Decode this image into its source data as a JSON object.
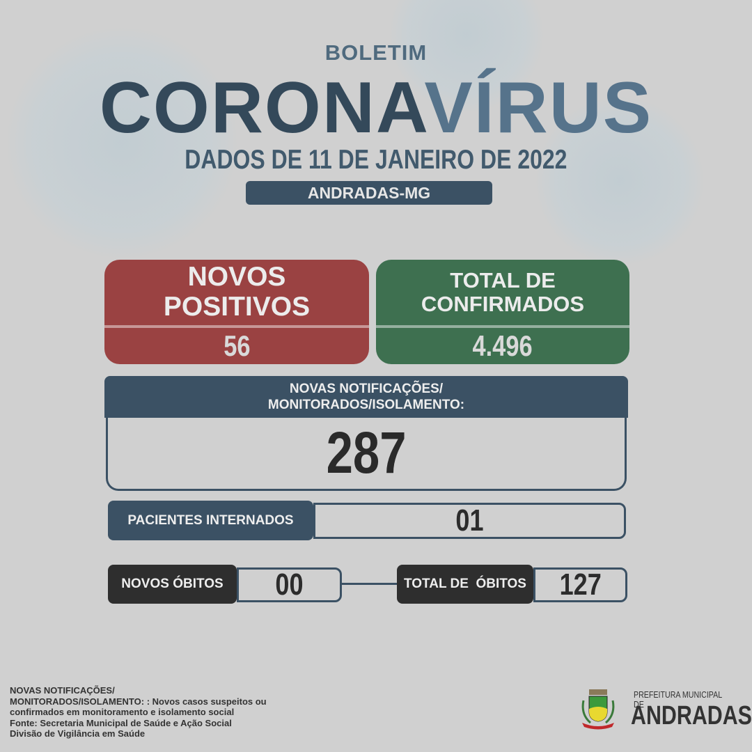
{
  "header": {
    "kicker": "BOLETIM",
    "title_part1": "CORONA",
    "title_part2": "VÍRUS",
    "date": "DADOS DE 11 DE JANEIRO DE 2022",
    "city": "ANDRADAS-MG"
  },
  "cards": {
    "new_positive": {
      "line1": "NOVOS",
      "line2": "POSITIVOS",
      "value": "56",
      "color": "#9a4242"
    },
    "total_confirmed": {
      "line1": "TOTAL DE",
      "line2": "CONFIRMADOS",
      "value": "4.496",
      "color": "#3e7050"
    }
  },
  "notifications": {
    "line1": "NOVAS NOTIFICAÇÕES/",
    "line2": "MONITORADOS/ISOLAMENTO:",
    "value": "287"
  },
  "hospitalized": {
    "label": "PACIENTES INTERNADOS",
    "value": "01"
  },
  "deaths": {
    "new_label": "NOVOS ÓBITOS",
    "new_value": "00",
    "total_label": "TOTAL DE  ÓBITOS",
    "total_value": "127"
  },
  "footer": {
    "lines": [
      "NOVAS NOTIFICAÇÕES/",
      "MONITORADOS/ISOLAMENTO: : Novos casos suspeitos ou",
      "confirmados em monitoramento e isolamento social",
      "Fonte: Secretaria Municipal de Saúde e Ação Social",
      "Divisão de Vigilância em Saúde"
    ]
  },
  "logo": {
    "small": "PREFEITURA MUNICIPAL DE",
    "big": "ANDRADAS",
    "crest_text": "ANDRADAS"
  },
  "colors": {
    "background": "#d0d0d0",
    "primary": "#3b5164",
    "accent": "#56738b"
  }
}
